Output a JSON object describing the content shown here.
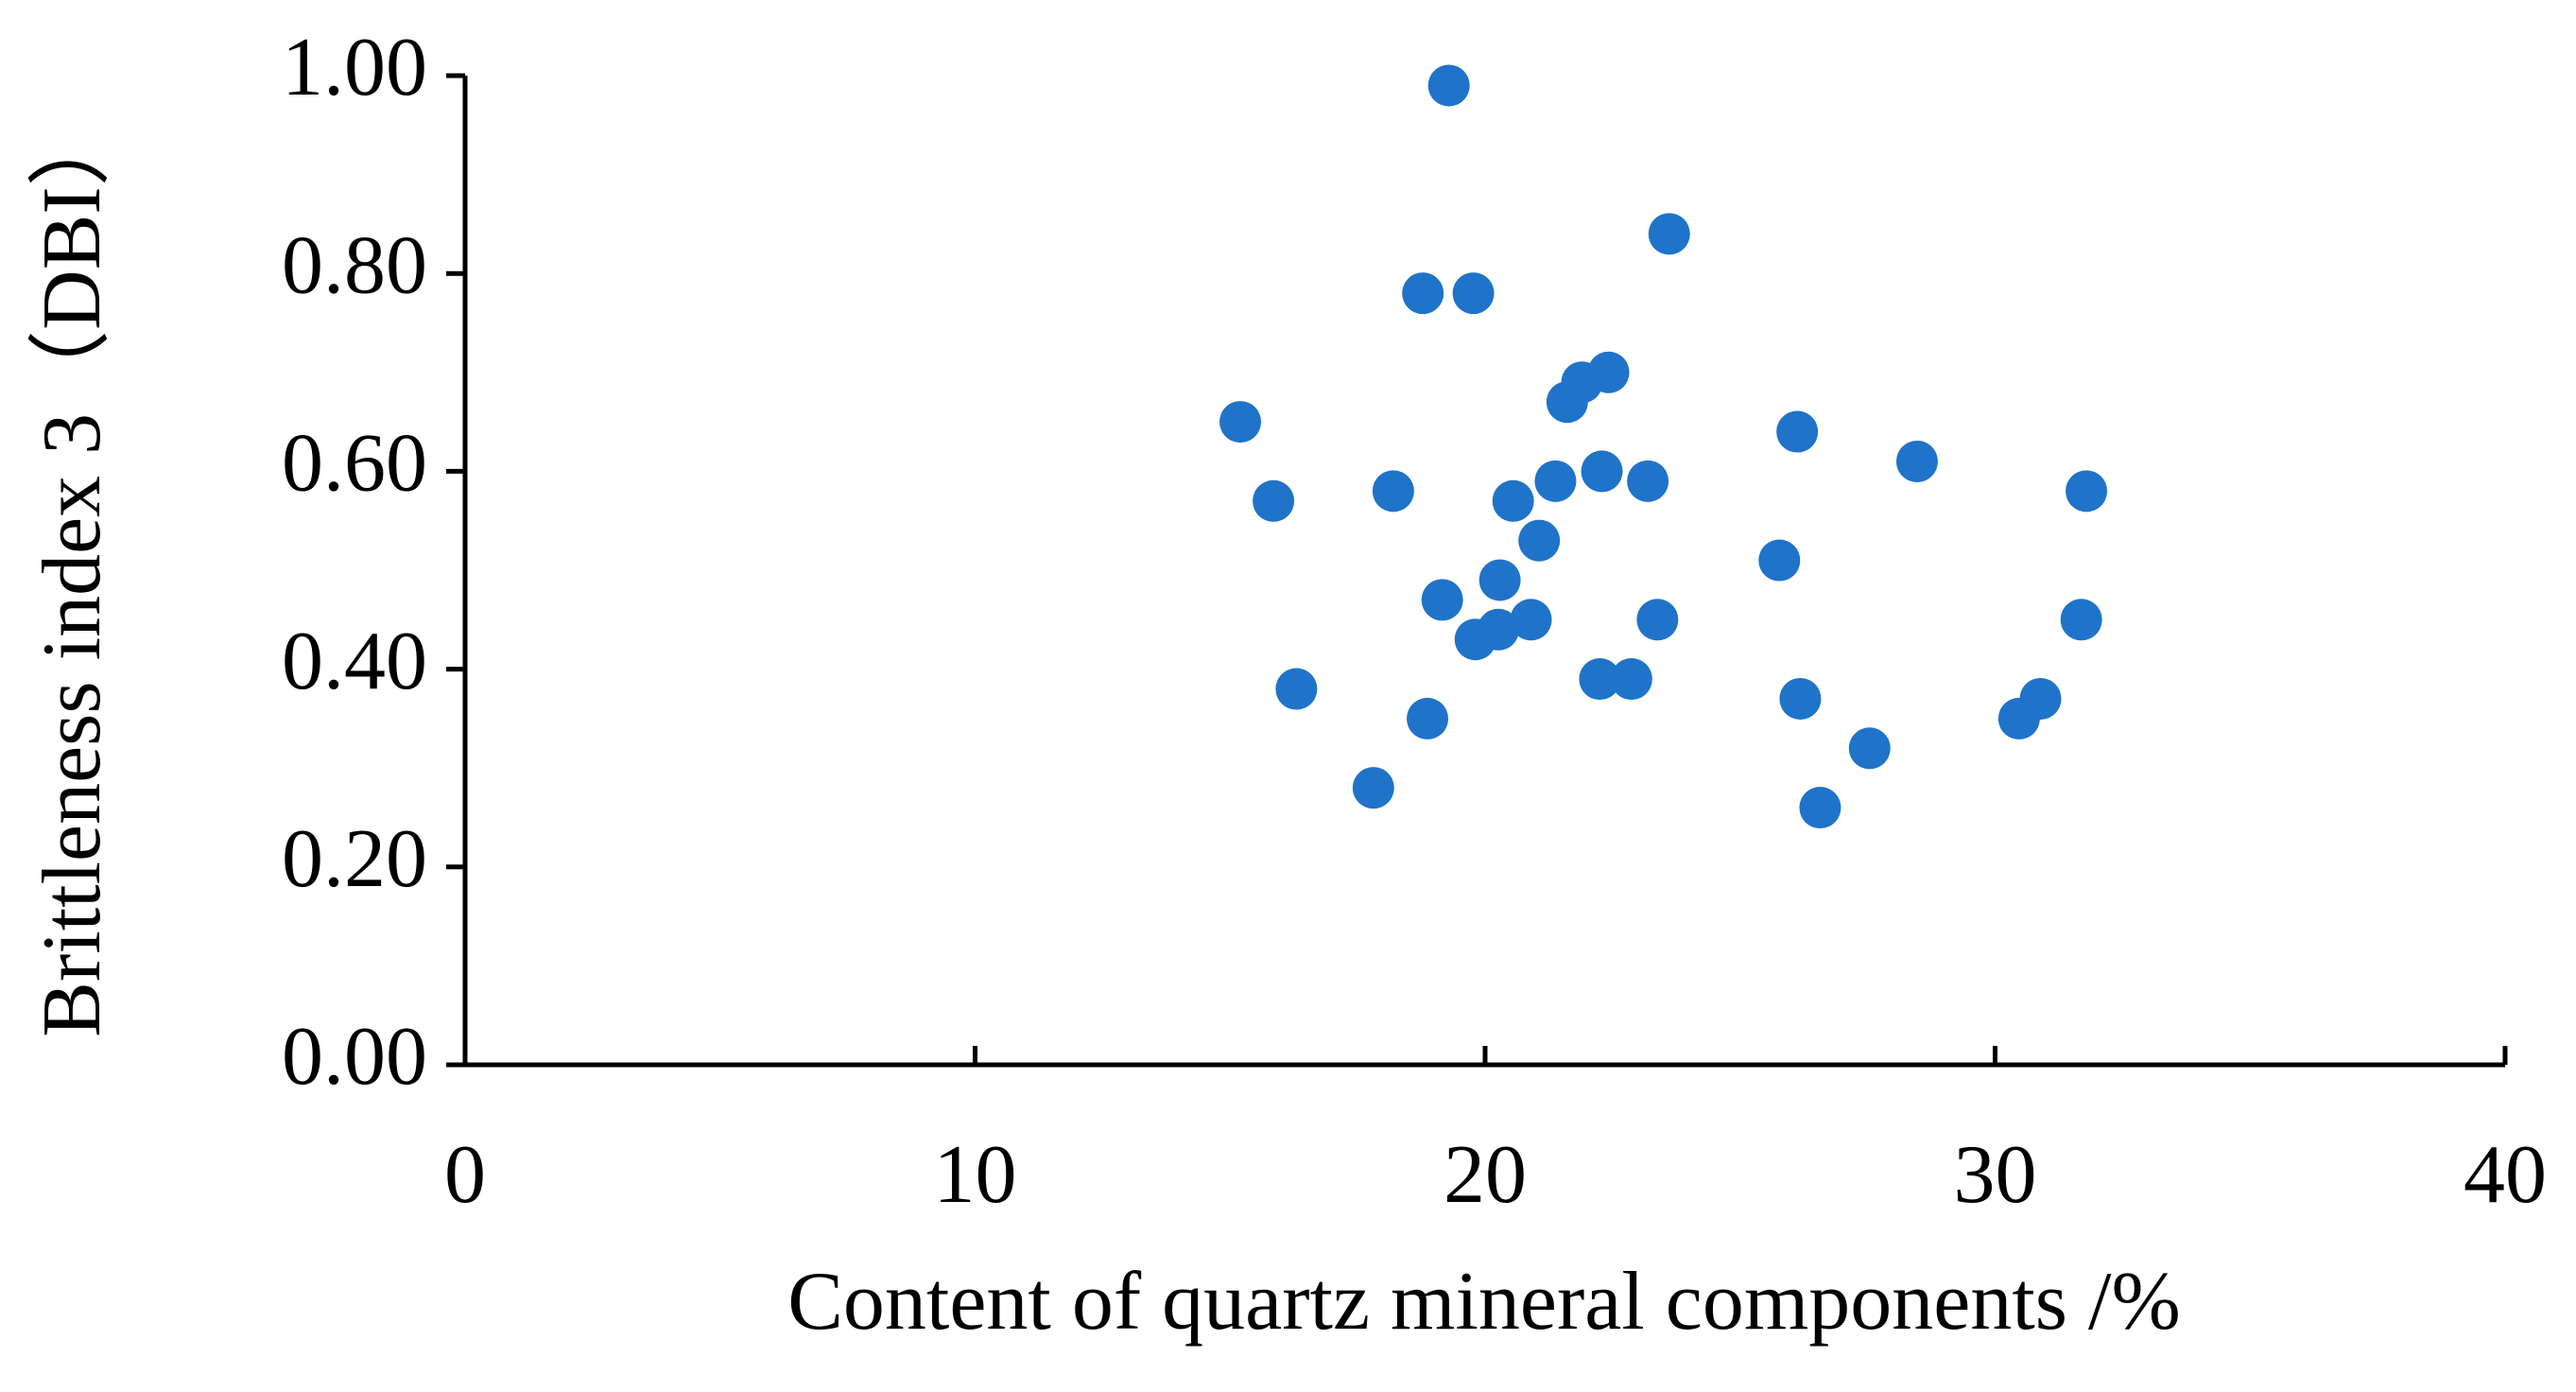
{
  "chart_data": {
    "type": "scatter",
    "xlabel": "Content of quartz mineral components /%",
    "ylabel": "Brittleness index 3（DBI）",
    "x": [
      19.29,
      23.61,
      18.78,
      19.77,
      22.42,
      21.9,
      21.61,
      15.2,
      26.12,
      28.47,
      22.29,
      21.38,
      23.19,
      15.85,
      20.55,
      18.2,
      31.79,
      21.06,
      25.77,
      20.29,
      19.16,
      20.9,
      20.26,
      19.81,
      23.38,
      31.69,
      16.3,
      22.25,
      22.87,
      26.18,
      30.89,
      30.47,
      18.87,
      27.54,
      17.81,
      26.57
    ],
    "values": [
      0.99,
      0.84,
      0.78,
      0.78,
      0.7,
      0.69,
      0.67,
      0.65,
      0.64,
      0.61,
      0.6,
      0.59,
      0.59,
      0.57,
      0.57,
      0.58,
      0.58,
      0.53,
      0.51,
      0.49,
      0.47,
      0.45,
      0.44,
      0.43,
      0.45,
      0.45,
      0.38,
      0.39,
      0.39,
      0.37,
      0.37,
      0.35,
      0.35,
      0.32,
      0.28,
      0.26
    ],
    "color": "#1f73c9",
    "xlim": [
      0,
      40
    ],
    "xticks": [
      0,
      10,
      20,
      30,
      40
    ],
    "ylim": [
      0,
      1
    ],
    "yticks": [
      {
        "value": 0,
        "label": "0.00"
      },
      {
        "value": 0.2,
        "label": "0.20"
      },
      {
        "value": 0.4,
        "label": "0.40"
      },
      {
        "value": 0.6,
        "label": "0.60"
      },
      {
        "value": 0.8,
        "label": "0.80"
      },
      {
        "value": 1,
        "label": "1.00"
      }
    ],
    "grid": false
  }
}
